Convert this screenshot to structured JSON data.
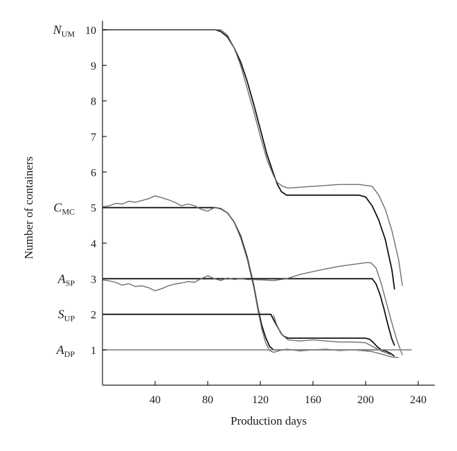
{
  "chart_data": {
    "type": "line",
    "title": "",
    "xlabel": "Production days",
    "ylabel": "Number of containers",
    "xlim": [
      0,
      250
    ],
    "ylim": [
      -0.5,
      10.1
    ],
    "xticks": [
      40,
      80,
      120,
      160,
      200,
      240
    ],
    "xtick_labels": [
      "40",
      "80",
      "120",
      "160",
      "200",
      "240"
    ],
    "yticks": [
      1,
      2,
      3,
      4,
      5,
      6,
      7,
      8,
      9,
      10
    ],
    "ytick_labels": [
      "1",
      "2",
      "3",
      "4",
      "5",
      "6",
      "7",
      "8",
      "9",
      "10"
    ],
    "grid": false,
    "series_labels": [
      {
        "main": "N",
        "sub": "UM",
        "y": 10
      },
      {
        "main": "C",
        "sub": "MC",
        "y": 5
      },
      {
        "main": "A",
        "sub": "SP",
        "y": 3
      },
      {
        "main": "S",
        "sub": "UP",
        "y": 2
      },
      {
        "main": "A",
        "sub": "DP",
        "y": 1
      }
    ],
    "series": [
      {
        "group": "N_UM",
        "kind": "model",
        "color": "#111111",
        "x": [
          0,
          86,
          90,
          95,
          100,
          105,
          110,
          115,
          120,
          125,
          130,
          133,
          136,
          140,
          195,
          200,
          205,
          210,
          215,
          220,
          222
        ],
        "y": [
          10,
          10,
          9.95,
          9.8,
          9.5,
          9.1,
          8.55,
          7.9,
          7.2,
          6.5,
          5.95,
          5.65,
          5.45,
          5.35,
          5.35,
          5.3,
          5.05,
          4.65,
          4.1,
          3.25,
          2.7
        ]
      },
      {
        "group": "N_UM",
        "kind": "sim",
        "color": "#6e6e6e",
        "x": [
          0,
          90,
          95,
          100,
          105,
          110,
          115,
          120,
          125,
          130,
          133,
          137,
          141,
          160,
          180,
          195,
          205,
          210,
          215,
          220,
          225,
          228
        ],
        "y": [
          10,
          10,
          9.85,
          9.5,
          9.0,
          8.35,
          7.7,
          7.0,
          6.35,
          5.9,
          5.7,
          5.6,
          5.55,
          5.6,
          5.65,
          5.65,
          5.6,
          5.35,
          4.95,
          4.35,
          3.55,
          2.8
        ]
      },
      {
        "group": "C_MC",
        "kind": "model",
        "color": "#111111",
        "x": [
          0,
          86,
          90,
          95,
          100,
          105,
          110,
          115,
          118,
          121,
          124,
          127,
          130,
          135,
          200,
          205,
          210,
          215,
          219,
          222
        ],
        "y": [
          5,
          5,
          4.97,
          4.85,
          4.6,
          4.2,
          3.6,
          2.8,
          2.2,
          1.7,
          1.35,
          1.1,
          1.0,
          1.0,
          1.0,
          1.0,
          1.0,
          0.97,
          0.9,
          0.82
        ]
      },
      {
        "group": "C_MC",
        "kind": "sim",
        "color": "#6e6e6e",
        "x": [
          0,
          5,
          10,
          15,
          20,
          25,
          30,
          35,
          40,
          45,
          50,
          55,
          60,
          65,
          70,
          75,
          80,
          85,
          90,
          95,
          100,
          105,
          110,
          115,
          118,
          121,
          124,
          127,
          130,
          135,
          140,
          150,
          160,
          170,
          180,
          190,
          200,
          205,
          210,
          215,
          220,
          225
        ],
        "y": [
          5.02,
          5.05,
          5.12,
          5.1,
          5.18,
          5.15,
          5.2,
          5.25,
          5.33,
          5.28,
          5.22,
          5.15,
          5.05,
          5.1,
          5.05,
          4.95,
          4.9,
          5.0,
          4.98,
          4.85,
          4.6,
          4.15,
          3.55,
          2.75,
          2.15,
          1.6,
          1.2,
          0.98,
          0.93,
          0.98,
          1.02,
          0.97,
          1.0,
          1.02,
          0.98,
          1.0,
          0.97,
          0.95,
          0.9,
          0.85,
          0.8,
          0.78
        ]
      },
      {
        "group": "A_SP",
        "kind": "model",
        "color": "#111111",
        "x": [
          0,
          205,
          208,
          211,
          214,
          217,
          220,
          222
        ],
        "y": [
          3,
          3,
          2.85,
          2.55,
          2.15,
          1.7,
          1.3,
          1.12
        ]
      },
      {
        "group": "A_SP",
        "kind": "sim",
        "color": "#6e6e6e",
        "x": [
          0,
          5,
          10,
          15,
          20,
          25,
          30,
          35,
          40,
          45,
          50,
          55,
          60,
          65,
          70,
          75,
          80,
          85,
          90,
          95,
          100,
          105,
          110,
          120,
          130,
          140,
          150,
          160,
          170,
          180,
          190,
          200,
          204,
          208,
          212,
          216,
          220,
          224,
          228
        ],
        "y": [
          2.97,
          2.94,
          2.9,
          2.82,
          2.86,
          2.78,
          2.8,
          2.75,
          2.66,
          2.72,
          2.8,
          2.85,
          2.88,
          2.92,
          2.9,
          3.0,
          3.08,
          3.0,
          2.95,
          3.02,
          2.98,
          3.0,
          2.98,
          2.97,
          2.95,
          3.0,
          3.12,
          3.2,
          3.28,
          3.35,
          3.4,
          3.45,
          3.45,
          3.3,
          2.85,
          2.3,
          1.75,
          1.25,
          0.85
        ]
      },
      {
        "group": "S_UP",
        "kind": "model",
        "color": "#111111",
        "x": [
          0,
          128,
          130,
          133,
          136,
          138,
          141,
          200,
          203,
          206,
          209,
          212
        ],
        "y": [
          2,
          2,
          1.85,
          1.65,
          1.45,
          1.38,
          1.33,
          1.33,
          1.3,
          1.2,
          1.08,
          1.0
        ]
      },
      {
        "group": "S_UP",
        "kind": "sim",
        "color": "#6e6e6e",
        "x": [
          130,
          132,
          135,
          138,
          141,
          150,
          160,
          170,
          180,
          190,
          200,
          205,
          210,
          215,
          220
        ],
        "y": [
          1.98,
          1.75,
          1.5,
          1.38,
          1.28,
          1.25,
          1.28,
          1.25,
          1.22,
          1.22,
          1.2,
          1.1,
          1.0,
          0.92,
          0.86
        ]
      },
      {
        "group": "A_DP",
        "kind": "model",
        "color": "#8a8a8a",
        "x": [
          0,
          235
        ],
        "y": [
          1,
          1
        ]
      }
    ]
  }
}
